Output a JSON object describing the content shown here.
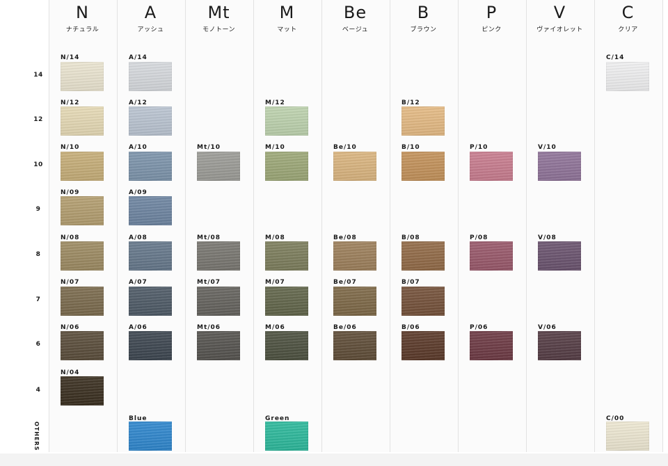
{
  "series": [
    {
      "code": "N",
      "name": "ナチュラル"
    },
    {
      "code": "A",
      "name": "アッシュ"
    },
    {
      "code": "Mt",
      "name": "モノトーン"
    },
    {
      "code": "M",
      "name": "マット"
    },
    {
      "code": "Be",
      "name": "ベージュ"
    },
    {
      "code": "B",
      "name": "ブラウン"
    },
    {
      "code": "P",
      "name": "ピンク"
    },
    {
      "code": "V",
      "name": "ヴァイオレット"
    },
    {
      "code": "C",
      "name": "クリア"
    }
  ],
  "levels": [
    "14",
    "12",
    "10",
    "9",
    "8",
    "7",
    "6",
    "4",
    "OTHERS"
  ],
  "swatches": [
    {
      "series": 0,
      "level": 0,
      "label": "N/14",
      "color": "#e9e3cf"
    },
    {
      "series": 0,
      "level": 1,
      "label": "N/12",
      "color": "#e4d8b4"
    },
    {
      "series": 0,
      "level": 2,
      "label": "N/10",
      "color": "#c5ad78"
    },
    {
      "series": 0,
      "level": 3,
      "label": "N/09",
      "color": "#b29d6f"
    },
    {
      "series": 0,
      "level": 4,
      "label": "N/08",
      "color": "#9c8a62"
    },
    {
      "series": 0,
      "level": 5,
      "label": "N/07",
      "color": "#7a6a4d"
    },
    {
      "series": 0,
      "level": 6,
      "label": "N/06",
      "color": "#5a4d3b"
    },
    {
      "series": 0,
      "level": 7,
      "label": "N/04",
      "color": "#3a2f20"
    },
    {
      "series": 1,
      "level": 0,
      "label": "A/14",
      "color": "#d5d8dc"
    },
    {
      "series": 1,
      "level": 1,
      "label": "A/12",
      "color": "#b9c3d0"
    },
    {
      "series": 1,
      "level": 2,
      "label": "A/10",
      "color": "#7c93aa"
    },
    {
      "series": 1,
      "level": 3,
      "label": "A/09",
      "color": "#6d84a0"
    },
    {
      "series": 1,
      "level": 4,
      "label": "A/08",
      "color": "#65778a"
    },
    {
      "series": 1,
      "level": 5,
      "label": "A/07",
      "color": "#4e5a66"
    },
    {
      "series": 1,
      "level": 6,
      "label": "A/06",
      "color": "#3d4650"
    },
    {
      "series": 1,
      "level": 8,
      "label": "Blue",
      "color": "#2f86cc"
    },
    {
      "series": 2,
      "level": 2,
      "label": "Mt/10",
      "color": "#9b9b96"
    },
    {
      "series": 2,
      "level": 4,
      "label": "Mt/08",
      "color": "#787670"
    },
    {
      "series": 2,
      "level": 5,
      "label": "Mt/07",
      "color": "#64625d"
    },
    {
      "series": 2,
      "level": 6,
      "label": "Mt/06",
      "color": "#55534f"
    },
    {
      "series": 3,
      "level": 1,
      "label": "M/12",
      "color": "#bcd1ad"
    },
    {
      "series": 3,
      "level": 2,
      "label": "M/10",
      "color": "#9ca777"
    },
    {
      "series": 3,
      "level": 4,
      "label": "M/08",
      "color": "#7c7d5c"
    },
    {
      "series": 3,
      "level": 5,
      "label": "M/07",
      "color": "#61654a"
    },
    {
      "series": 3,
      "level": 6,
      "label": "M/06",
      "color": "#4d5140"
    },
    {
      "series": 3,
      "level": 8,
      "label": "Green",
      "color": "#2db89b"
    },
    {
      "series": 4,
      "level": 2,
      "label": "Be/10",
      "color": "#d9b47f"
    },
    {
      "series": 4,
      "level": 4,
      "label": "Be/08",
      "color": "#9c7f5b"
    },
    {
      "series": 4,
      "level": 5,
      "label": "Be/07",
      "color": "#7d6847"
    },
    {
      "series": 4,
      "level": 6,
      "label": "Be/06",
      "color": "#5f4d38"
    },
    {
      "series": 5,
      "level": 1,
      "label": "B/12",
      "color": "#e3b983"
    },
    {
      "series": 5,
      "level": 2,
      "label": "B/10",
      "color": "#c2915a"
    },
    {
      "series": 5,
      "level": 4,
      "label": "B/08",
      "color": "#916a47"
    },
    {
      "series": 5,
      "level": 5,
      "label": "B/07",
      "color": "#74513a"
    },
    {
      "series": 5,
      "level": 6,
      "label": "B/06",
      "color": "#5b3a2a"
    },
    {
      "series": 6,
      "level": 2,
      "label": "P/10",
      "color": "#c77c8e"
    },
    {
      "series": 6,
      "level": 4,
      "label": "P/08",
      "color": "#98586a"
    },
    {
      "series": 6,
      "level": 6,
      "label": "P/06",
      "color": "#6d3a44"
    },
    {
      "series": 7,
      "level": 2,
      "label": "V/10",
      "color": "#8f7398"
    },
    {
      "series": 7,
      "level": 4,
      "label": "V/08",
      "color": "#6a536e"
    },
    {
      "series": 7,
      "level": 6,
      "label": "V/06",
      "color": "#553d45"
    },
    {
      "series": 8,
      "level": 0,
      "label": "C/14",
      "color": "#eeeeef"
    },
    {
      "series": 8,
      "level": 8,
      "label": "C/00",
      "color": "#ece6d1"
    }
  ]
}
